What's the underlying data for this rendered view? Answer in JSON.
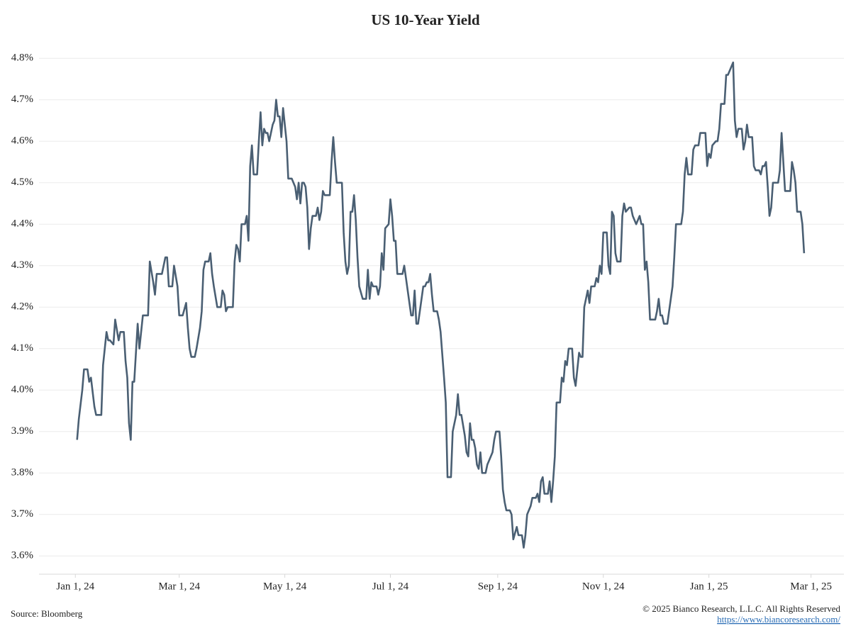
{
  "chart_data": {
    "type": "line",
    "title": "US 10-Year Yield",
    "source": "Source: Bloomberg",
    "copyright": "© 2025 Bianco Research, L.L.C. All Rights Reserved",
    "url": "https://www.biancoresearch.com/",
    "xlim": [
      "2023-12-11",
      "2025-03-20"
    ],
    "ylim": [
      3.556,
      4.838
    ],
    "grid": true,
    "xticks": [
      {
        "value": "2024-01-01",
        "label": "Jan 1, 24"
      },
      {
        "value": "2024-03-01",
        "label": "Mar 1, 24"
      },
      {
        "value": "2024-05-01",
        "label": "May 1, 24"
      },
      {
        "value": "2024-07-01",
        "label": "Jul 1, 24"
      },
      {
        "value": "2024-09-01",
        "label": "Sep 1, 24"
      },
      {
        "value": "2024-11-01",
        "label": "Nov 1, 24"
      },
      {
        "value": "2025-01-01",
        "label": "Jan 1, 25"
      },
      {
        "value": "2025-03-01",
        "label": "Mar 1, 25"
      }
    ],
    "yticks": [
      {
        "value": 3.6,
        "label": "3.6%"
      },
      {
        "value": 3.7,
        "label": "3.7%"
      },
      {
        "value": 3.8,
        "label": "3.8%"
      },
      {
        "value": 3.9,
        "label": "3.9%"
      },
      {
        "value": 4.0,
        "label": "4.0%"
      },
      {
        "value": 4.1,
        "label": "4.1%"
      },
      {
        "value": 4.2,
        "label": "4.2%"
      },
      {
        "value": 4.3,
        "label": "4.3%"
      },
      {
        "value": 4.4,
        "label": "4.4%"
      },
      {
        "value": 4.5,
        "label": "4.5%"
      },
      {
        "value": 4.6,
        "label": "4.6%"
      },
      {
        "value": 4.7,
        "label": "4.7%"
      },
      {
        "value": 4.8,
        "label": "4.8%"
      }
    ],
    "x": [
      "2024-01-02",
      "2024-01-03",
      "2024-01-05",
      "2024-01-06",
      "2024-01-08",
      "2024-01-09",
      "2024-01-10",
      "2024-01-12",
      "2024-01-13",
      "2024-01-16",
      "2024-01-17",
      "2024-01-19",
      "2024-01-20",
      "2024-01-21",
      "2024-01-23",
      "2024-01-24",
      "2024-01-26",
      "2024-01-27",
      "2024-01-29",
      "2024-01-30",
      "2024-01-31",
      "2024-02-01",
      "2024-02-02",
      "2024-02-03",
      "2024-02-04",
      "2024-02-06",
      "2024-02-07",
      "2024-02-08",
      "2024-02-09",
      "2024-02-12",
      "2024-02-13",
      "2024-02-15",
      "2024-02-16",
      "2024-02-17",
      "2024-02-20",
      "2024-02-22",
      "2024-02-23",
      "2024-02-24",
      "2024-02-26",
      "2024-02-27",
      "2024-02-29",
      "2024-03-01",
      "2024-03-03",
      "2024-03-05",
      "2024-03-06",
      "2024-03-07",
      "2024-03-08",
      "2024-03-10",
      "2024-03-11",
      "2024-03-13",
      "2024-03-14",
      "2024-03-15",
      "2024-03-16",
      "2024-03-18",
      "2024-03-19",
      "2024-03-20",
      "2024-03-21",
      "2024-03-23",
      "2024-03-25",
      "2024-03-26",
      "2024-03-27",
      "2024-03-28",
      "2024-03-29",
      "2024-04-01",
      "2024-04-02",
      "2024-04-03",
      "2024-04-04",
      "2024-04-05",
      "2024-04-06",
      "2024-04-08",
      "2024-04-09",
      "2024-04-10",
      "2024-04-11",
      "2024-04-12",
      "2024-04-13",
      "2024-04-15",
      "2024-04-16",
      "2024-04-17",
      "2024-04-18",
      "2024-04-19",
      "2024-04-20",
      "2024-04-21",
      "2024-04-22",
      "2024-04-24",
      "2024-04-25",
      "2024-04-26",
      "2024-04-27",
      "2024-04-28",
      "2024-04-29",
      "2024-04-30",
      "2024-05-02",
      "2024-05-03",
      "2024-05-05",
      "2024-05-07",
      "2024-05-08",
      "2024-05-09",
      "2024-05-10",
      "2024-05-11",
      "2024-05-12",
      "2024-05-13",
      "2024-05-14",
      "2024-05-15",
      "2024-05-16",
      "2024-05-17",
      "2024-05-19",
      "2024-05-20",
      "2024-05-21",
      "2024-05-22",
      "2024-05-23",
      "2024-05-24",
      "2024-05-27",
      "2024-05-28",
      "2024-05-29",
      "2024-05-30",
      "2024-05-31",
      "2024-06-03",
      "2024-06-04",
      "2024-06-05",
      "2024-06-06",
      "2024-06-07",
      "2024-06-08",
      "2024-06-09",
      "2024-06-10",
      "2024-06-11",
      "2024-06-12",
      "2024-06-13",
      "2024-06-15",
      "2024-06-17",
      "2024-06-18",
      "2024-06-19",
      "2024-06-20",
      "2024-06-21",
      "2024-06-23",
      "2024-06-24",
      "2024-06-25",
      "2024-06-26",
      "2024-06-27",
      "2024-06-28",
      "2024-06-30",
      "2024-07-01",
      "2024-07-02",
      "2024-07-03",
      "2024-07-04",
      "2024-07-05",
      "2024-07-08",
      "2024-07-09",
      "2024-07-10",
      "2024-07-12",
      "2024-07-13",
      "2024-07-14",
      "2024-07-15",
      "2024-07-16",
      "2024-07-17",
      "2024-07-19",
      "2024-07-20",
      "2024-07-21",
      "2024-07-22",
      "2024-07-23",
      "2024-07-24",
      "2024-07-25",
      "2024-07-26",
      "2024-07-28",
      "2024-07-29",
      "2024-07-30",
      "2024-08-01",
      "2024-08-02",
      "2024-08-03",
      "2024-08-05",
      "2024-08-06",
      "2024-08-08",
      "2024-08-09",
      "2024-08-10",
      "2024-08-11",
      "2024-08-13",
      "2024-08-14",
      "2024-08-15",
      "2024-08-16",
      "2024-08-17",
      "2024-08-18",
      "2024-08-19",
      "2024-08-20",
      "2024-08-21",
      "2024-08-22",
      "2024-08-23",
      "2024-08-25",
      "2024-08-26",
      "2024-08-27",
      "2024-08-29",
      "2024-08-30",
      "2024-08-31",
      "2024-09-02",
      "2024-09-03",
      "2024-09-04",
      "2024-09-05",
      "2024-09-06",
      "2024-09-08",
      "2024-09-09",
      "2024-09-10",
      "2024-09-12",
      "2024-09-13",
      "2024-09-15",
      "2024-09-16",
      "2024-09-17",
      "2024-09-18",
      "2024-09-20",
      "2024-09-21",
      "2024-09-23",
      "2024-09-24",
      "2024-09-25",
      "2024-09-26",
      "2024-09-27",
      "2024-09-28",
      "2024-09-29",
      "2024-09-30",
      "2024-10-01",
      "2024-10-02",
      "2024-10-03",
      "2024-10-04",
      "2024-10-05",
      "2024-10-07",
      "2024-10-08",
      "2024-10-09",
      "2024-10-10",
      "2024-10-11",
      "2024-10-12",
      "2024-10-14",
      "2024-10-15",
      "2024-10-16",
      "2024-10-18",
      "2024-10-19",
      "2024-10-20",
      "2024-10-21",
      "2024-10-22",
      "2024-10-23",
      "2024-10-24",
      "2024-10-25",
      "2024-10-27",
      "2024-10-28",
      "2024-10-29",
      "2024-10-30",
      "2024-10-31",
      "2024-11-01",
      "2024-11-03",
      "2024-11-04",
      "2024-11-05",
      "2024-11-06",
      "2024-11-07",
      "2024-11-08",
      "2024-11-09",
      "2024-11-11",
      "2024-11-12",
      "2024-11-13",
      "2024-11-14",
      "2024-11-16",
      "2024-11-17",
      "2024-11-18",
      "2024-11-20",
      "2024-11-21",
      "2024-11-22",
      "2024-11-23",
      "2024-11-24",
      "2024-11-25",
      "2024-11-26",
      "2024-11-27",
      "2024-11-28",
      "2024-12-01",
      "2024-12-02",
      "2024-12-03",
      "2024-12-04",
      "2024-12-05",
      "2024-12-06",
      "2024-12-08",
      "2024-12-09",
      "2024-12-10",
      "2024-12-11",
      "2024-12-12",
      "2024-12-13",
      "2024-12-16",
      "2024-12-17",
      "2024-12-18",
      "2024-12-19",
      "2024-12-20",
      "2024-12-22",
      "2024-12-23",
      "2024-12-24",
      "2024-12-26",
      "2024-12-27",
      "2024-12-30",
      "2024-12-31",
      "2025-01-01",
      "2025-01-02",
      "2025-01-03",
      "2025-01-05",
      "2025-01-06",
      "2025-01-07",
      "2025-01-08",
      "2025-01-10",
      "2025-01-11",
      "2025-01-12",
      "2025-01-15",
      "2025-01-16",
      "2025-01-17",
      "2025-01-18",
      "2025-01-20",
      "2025-01-21",
      "2025-01-22",
      "2025-01-23",
      "2025-01-24",
      "2025-01-26",
      "2025-01-27",
      "2025-01-28",
      "2025-01-30",
      "2025-01-31",
      "2025-02-01",
      "2025-02-02",
      "2025-02-03",
      "2025-02-04",
      "2025-02-05",
      "2025-02-06",
      "2025-02-07",
      "2025-02-10",
      "2025-02-11",
      "2025-02-12",
      "2025-02-13",
      "2025-02-14",
      "2025-02-17",
      "2025-02-18",
      "2025-02-19",
      "2025-02-20",
      "2025-02-21",
      "2025-02-23",
      "2025-02-24",
      "2025-02-25"
    ],
    "series": [
      {
        "name": "US 10-Year Yield",
        "color": "#4a5f73",
        "values": [
          3.88,
          3.93,
          4.0,
          4.05,
          4.05,
          4.02,
          4.03,
          3.96,
          3.94,
          3.94,
          4.06,
          4.14,
          4.12,
          4.12,
          4.11,
          4.17,
          4.12,
          4.14,
          4.14,
          4.07,
          4.03,
          3.92,
          3.88,
          4.02,
          4.02,
          4.16,
          4.1,
          4.14,
          4.18,
          4.18,
          4.31,
          4.26,
          4.23,
          4.28,
          4.28,
          4.32,
          4.32,
          4.25,
          4.25,
          4.3,
          4.25,
          4.18,
          4.18,
          4.21,
          4.15,
          4.1,
          4.08,
          4.08,
          4.1,
          4.15,
          4.19,
          4.29,
          4.31,
          4.31,
          4.33,
          4.28,
          4.25,
          4.2,
          4.2,
          4.24,
          4.23,
          4.19,
          4.2,
          4.2,
          4.31,
          4.35,
          4.34,
          4.31,
          4.4,
          4.4,
          4.42,
          4.36,
          4.54,
          4.59,
          4.52,
          4.52,
          4.6,
          4.67,
          4.59,
          4.63,
          4.62,
          4.62,
          4.6,
          4.64,
          4.65,
          4.7,
          4.66,
          4.66,
          4.61,
          4.68,
          4.6,
          4.51,
          4.51,
          4.49,
          4.46,
          4.5,
          4.45,
          4.5,
          4.5,
          4.49,
          4.44,
          4.34,
          4.39,
          4.42,
          4.42,
          4.44,
          4.41,
          4.43,
          4.48,
          4.47,
          4.47,
          4.55,
          4.61,
          4.55,
          4.5,
          4.5,
          4.38,
          4.31,
          4.28,
          4.3,
          4.43,
          4.43,
          4.47,
          4.41,
          4.32,
          4.25,
          4.22,
          4.22,
          4.29,
          4.22,
          4.26,
          4.25,
          4.25,
          4.23,
          4.25,
          4.33,
          4.29,
          4.39,
          4.4,
          4.46,
          4.42,
          4.36,
          4.36,
          4.28,
          4.28,
          4.3,
          4.27,
          4.21,
          4.18,
          4.18,
          4.24,
          4.16,
          4.16,
          4.22,
          4.25,
          4.25,
          4.26,
          4.26,
          4.28,
          4.23,
          4.19,
          4.19,
          4.17,
          4.14,
          4.03,
          3.97,
          3.79,
          3.79,
          3.9,
          3.94,
          3.99,
          3.94,
          3.94,
          3.89,
          3.85,
          3.84,
          3.92,
          3.88,
          3.88,
          3.86,
          3.82,
          3.81,
          3.85,
          3.8,
          3.8,
          3.82,
          3.83,
          3.85,
          3.88,
          3.9,
          3.9,
          3.84,
          3.76,
          3.73,
          3.71,
          3.71,
          3.7,
          3.64,
          3.67,
          3.65,
          3.65,
          3.62,
          3.65,
          3.7,
          3.72,
          3.74,
          3.74,
          3.75,
          3.73,
          3.78,
          3.79,
          3.75,
          3.75,
          3.75,
          3.78,
          3.73,
          3.78,
          3.84,
          3.97,
          3.97,
          4.03,
          4.02,
          4.07,
          4.06,
          4.1,
          4.1,
          4.03,
          4.01,
          4.09,
          4.08,
          4.08,
          4.2,
          4.22,
          4.24,
          4.21,
          4.25,
          4.25,
          4.27,
          4.26,
          4.3,
          4.28,
          4.38,
          4.38,
          4.3,
          4.28,
          4.43,
          4.42,
          4.33,
          4.31,
          4.31,
          4.42,
          4.45,
          4.43,
          4.44,
          4.44,
          4.42,
          4.4,
          4.41,
          4.42,
          4.4,
          4.4,
          4.29,
          4.31,
          4.26,
          4.17,
          4.17,
          4.19,
          4.22,
          4.18,
          4.18,
          4.16,
          4.16,
          4.19,
          4.22,
          4.25,
          4.32,
          4.4,
          4.4,
          4.43,
          4.52,
          4.56,
          4.52,
          4.52,
          4.58,
          4.59,
          4.59,
          4.62,
          4.62,
          4.54,
          4.57,
          4.56,
          4.59,
          4.6,
          4.6,
          4.63,
          4.69,
          4.69,
          4.76,
          4.76,
          4.79,
          4.65,
          4.61,
          4.63,
          4.63,
          4.58,
          4.6,
          4.64,
          4.61,
          4.61,
          4.54,
          4.53,
          4.53,
          4.52,
          4.54,
          4.54,
          4.55,
          4.49,
          4.42,
          4.44,
          4.5,
          4.5,
          4.53,
          4.62,
          4.55,
          4.48,
          4.48,
          4.55,
          4.53,
          4.5,
          4.43,
          4.43,
          4.4,
          4.33
        ]
      }
    ]
  }
}
